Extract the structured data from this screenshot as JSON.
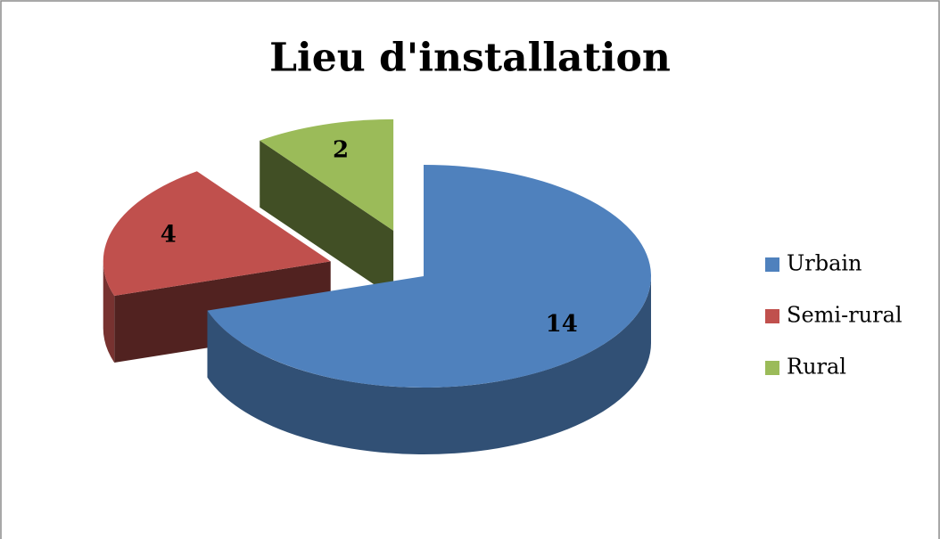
{
  "chart_data": {
    "type": "pie",
    "title": "Lieu d'installation",
    "categories": [
      "Urbain",
      "Semi-rural",
      "Rural"
    ],
    "values": [
      14,
      4,
      2
    ],
    "colors": [
      "#4f81bd",
      "#c0504d",
      "#9bbb59"
    ],
    "legend": "right"
  }
}
